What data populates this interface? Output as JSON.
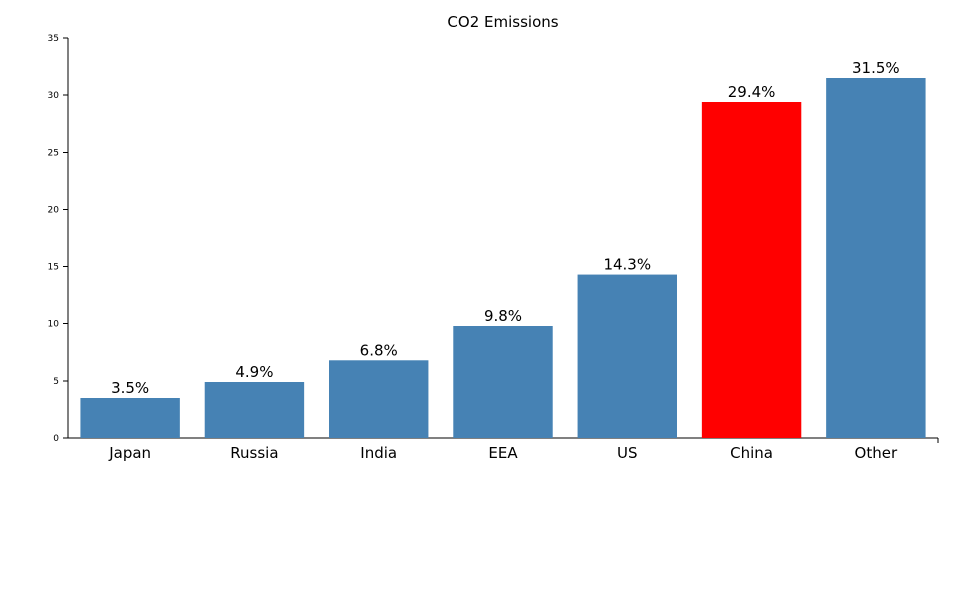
{
  "chart_data": {
    "type": "bar",
    "title": "CO2 Emissions",
    "xlabel": "",
    "ylabel": "",
    "categories": [
      "Japan",
      "Russia",
      "India",
      "EEA",
      "US",
      "China",
      "Other"
    ],
    "values": [
      3.5,
      4.9,
      6.8,
      9.8,
      14.3,
      29.4,
      31.5
    ],
    "data_labels": [
      "3.5%",
      "4.9%",
      "6.8%",
      "9.8%",
      "14.3%",
      "29.4%",
      "31.5%"
    ],
    "highlight_category": "China",
    "colors": {
      "default": "#4682b4",
      "highlight": "#ff0000"
    },
    "ylim": [
      0,
      35
    ],
    "yticks": [
      0,
      5,
      10,
      15,
      20,
      25,
      30,
      35
    ],
    "grid": false,
    "legend": "none"
  }
}
